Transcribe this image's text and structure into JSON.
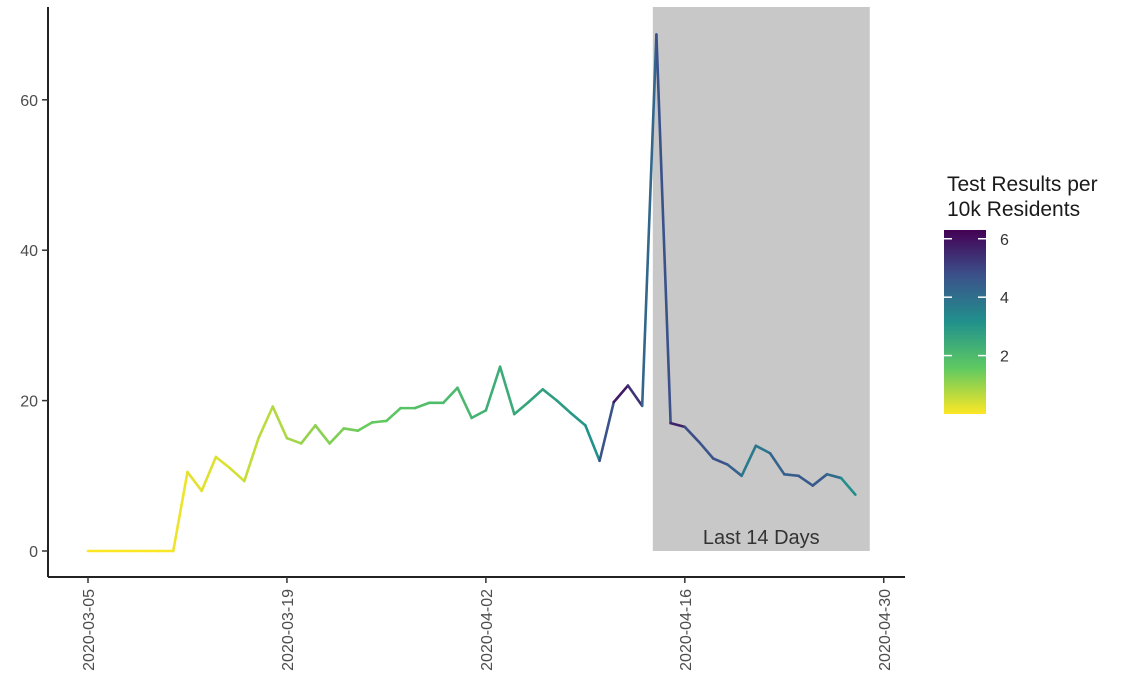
{
  "chart_data": {
    "type": "line",
    "title": "",
    "xlabel": "",
    "ylabel": "",
    "x_ticks": [
      "2020-03-05",
      "2020-03-19",
      "2020-04-02",
      "2020-04-16",
      "2020-04-30"
    ],
    "y_ticks": [
      0,
      20,
      40,
      60
    ],
    "xlim": [
      "2020-03-05",
      "2020-04-30"
    ],
    "ylim": [
      0,
      70
    ],
    "grid": false,
    "shaded_region": {
      "start": "2020-04-16",
      "end": "2020-04-30",
      "label": "Last 14 Days",
      "color": "#c8c8c8"
    },
    "color_legend": {
      "title_lines": [
        "Test Results per",
        "10k Residents"
      ],
      "ticks": [
        2,
        4,
        6
      ],
      "range": [
        0,
        6.3
      ],
      "palette": "viridis-reversed",
      "colors": [
        "#fde725",
        "#5ec962",
        "#21918c",
        "#3b528b",
        "#440154"
      ]
    },
    "series": [
      {
        "x": [
          "2020-03-05",
          "2020-03-06",
          "2020-03-07",
          "2020-03-08",
          "2020-03-09",
          "2020-03-10",
          "2020-03-11",
          "2020-03-12",
          "2020-03-13",
          "2020-03-14",
          "2020-03-15",
          "2020-03-16",
          "2020-03-17",
          "2020-03-18",
          "2020-03-19",
          "2020-03-20",
          "2020-03-21",
          "2020-03-22",
          "2020-03-23",
          "2020-03-24",
          "2020-03-25",
          "2020-03-26",
          "2020-03-27",
          "2020-03-28",
          "2020-03-29",
          "2020-03-30",
          "2020-03-31",
          "2020-04-01",
          "2020-04-02",
          "2020-04-03",
          "2020-04-04",
          "2020-04-05",
          "2020-04-06",
          "2020-04-07",
          "2020-04-08",
          "2020-04-09",
          "2020-04-10",
          "2020-04-11",
          "2020-04-12",
          "2020-04-13",
          "2020-04-14",
          "2020-04-15",
          "2020-04-16",
          "2020-04-17",
          "2020-04-18",
          "2020-04-19",
          "2020-04-20",
          "2020-04-21",
          "2020-04-22",
          "2020-04-23",
          "2020-04-24",
          "2020-04-25",
          "2020-04-26",
          "2020-04-27",
          "2020-04-28",
          "2020-04-29"
        ],
        "values": [
          0,
          0,
          0,
          0,
          0,
          0,
          0,
          10.5,
          8,
          12.5,
          11,
          9.3,
          15,
          19.2,
          15,
          14.3,
          16.7,
          14.3,
          16.3,
          16,
          17.1,
          17.3,
          19,
          19,
          19.7,
          19.7,
          21.7,
          17.7,
          18.7,
          24.5,
          18.2,
          19.8,
          21.5,
          20,
          18.3,
          16.7,
          12,
          19.8,
          22,
          19.3,
          68.7,
          17,
          16.5,
          14.5,
          12.3,
          11.5,
          10,
          14,
          13,
          10.2,
          10,
          8.7,
          10.2,
          9.7,
          7.5,
          null
        ],
        "results_per_10k": [
          0,
          0,
          0,
          0,
          0,
          0,
          0.1,
          0.2,
          0.3,
          0.3,
          0.35,
          0.5,
          0.6,
          0.7,
          0.85,
          0.95,
          1.1,
          1.2,
          1.3,
          1.4,
          1.5,
          1.6,
          1.7,
          1.8,
          1.9,
          2.0,
          2.0,
          2.1,
          2.3,
          2.4,
          2.5,
          2.6,
          2.7,
          2.8,
          2.9,
          3.1,
          3.2,
          6.2,
          5.5,
          5.2,
          3.2,
          6.3,
          5,
          4.6,
          4.7,
          4.7,
          4,
          3.5,
          4.2,
          4.4,
          4.5,
          4.6,
          4.5,
          3.7,
          2.7,
          2
        ]
      }
    ]
  }
}
